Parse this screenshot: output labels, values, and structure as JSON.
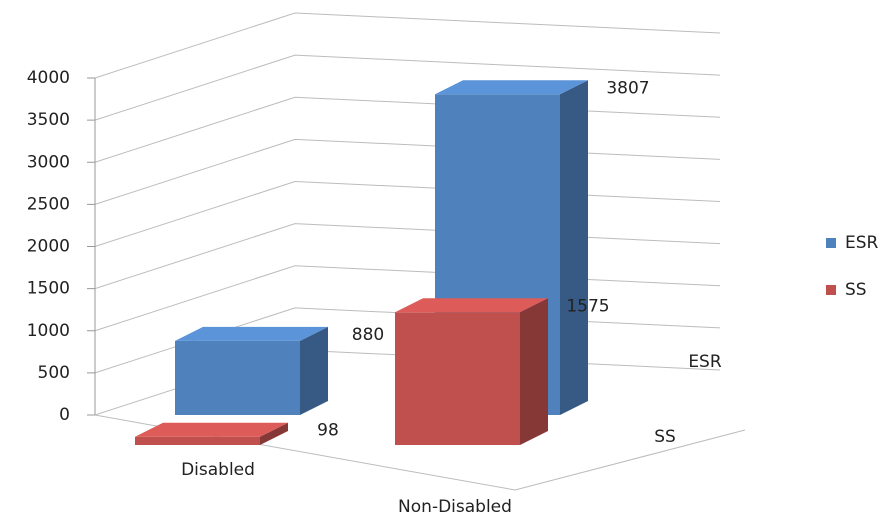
{
  "chart_data": {
    "type": "bar3d",
    "categories": [
      "Disabled",
      "Non-Disabled"
    ],
    "series": [
      {
        "name": "ESR",
        "color": "#4f81bd",
        "values": [
          880,
          3807
        ]
      },
      {
        "name": "SS",
        "color": "#c0504d",
        "values": [
          98,
          1575
        ]
      }
    ],
    "ylim": [
      0,
      4000
    ],
    "yticks": [
      0,
      500,
      1000,
      1500,
      2000,
      2500,
      3000,
      3500,
      4000
    ],
    "grid": true,
    "legend": "right"
  }
}
